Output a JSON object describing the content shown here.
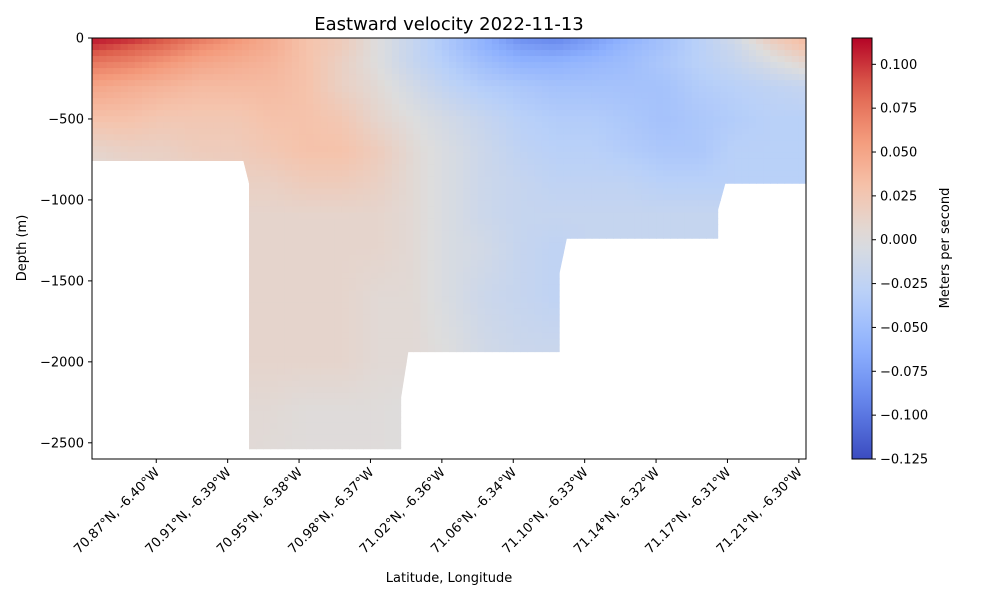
{
  "chart_data": {
    "type": "heatmap",
    "title": "Eastward velocity 2022-11-13",
    "xlabel": "Latitude, Longitude",
    "ylabel": "Depth (m)",
    "colorbar_label": "Meters per second",
    "colormap": "coolwarm",
    "ylim": [
      -2600,
      0
    ],
    "y_ticks": [
      0,
      -500,
      -1000,
      -1500,
      -2000,
      -2500
    ],
    "y_tick_labels": [
      "0",
      "−500",
      "−1000",
      "−1500",
      "−2000",
      "−2500"
    ],
    "x_range": [
      0,
      10
    ],
    "x_ticks": [
      0.9,
      1.9,
      2.9,
      3.9,
      4.9,
      5.9,
      6.9,
      7.9,
      8.9,
      9.9
    ],
    "x_tick_labels": [
      "70.87°N, -6.40°W",
      "70.91°N, -6.39°W",
      "70.95°N, -6.38°W",
      "70.98°N, -6.37°W",
      "71.02°N, -6.36°W",
      "71.06°N, -6.34°W",
      "71.10°N, -6.33°W",
      "71.14°N, -6.32°W",
      "71.17°N, -6.31°W",
      "71.21°N, -6.30°W"
    ],
    "colorbar_range": [
      -0.125,
      0.115
    ],
    "colorbar_ticks": [
      0.1,
      0.075,
      0.05,
      0.025,
      0.0,
      -0.025,
      -0.05,
      -0.075,
      -0.1,
      -0.125
    ],
    "colorbar_tick_labels": [
      "0.100",
      "0.075",
      "0.050",
      "0.025",
      "0.000",
      "−0.025",
      "−0.050",
      "−0.075",
      "−0.100",
      "−0.125"
    ],
    "bottom_depth_profile": [
      {
        "x": 0.0,
        "depth": -760
      },
      {
        "x": 2.12,
        "depth": -760
      },
      {
        "x": 2.2,
        "depth": -900
      },
      {
        "x": 2.2,
        "depth": -2540
      },
      {
        "x": 4.33,
        "depth": -2540
      },
      {
        "x": 4.33,
        "depth": -2220
      },
      {
        "x": 4.43,
        "depth": -1940
      },
      {
        "x": 6.55,
        "depth": -1940
      },
      {
        "x": 6.55,
        "depth": -1450
      },
      {
        "x": 6.65,
        "depth": -1240
      },
      {
        "x": 8.77,
        "depth": -1240
      },
      {
        "x": 8.77,
        "depth": -1060
      },
      {
        "x": 8.87,
        "depth": -900
      },
      {
        "x": 10.0,
        "depth": -900
      }
    ],
    "velocity_samples": {
      "x": [
        0.0,
        0.5,
        1.0,
        1.5,
        2.0,
        2.5,
        3.0,
        3.5,
        4.0,
        4.5,
        5.0,
        5.5,
        6.0,
        6.5,
        7.0,
        7.5,
        8.0,
        8.5,
        9.0,
        9.5,
        10.0
      ],
      "depth": [
        0,
        -50,
        -150,
        -300,
        -500,
        -700,
        -900,
        -1100,
        -1300,
        -1600,
        -2000,
        -2300,
        -2600
      ],
      "values": [
        [
          0.11,
          0.105,
          0.09,
          0.075,
          0.06,
          0.045,
          0.03,
          0.02,
          0.0,
          -0.02,
          -0.04,
          -0.06,
          -0.085,
          -0.09,
          -0.075,
          -0.06,
          -0.045,
          -0.03,
          -0.01,
          0.02,
          0.035
        ],
        [
          0.1,
          0.09,
          0.08,
          0.065,
          0.055,
          0.045,
          0.03,
          0.02,
          0.0,
          -0.02,
          -0.04,
          -0.06,
          -0.075,
          -0.08,
          -0.07,
          -0.055,
          -0.045,
          -0.03,
          -0.015,
          0.01,
          0.03
        ],
        [
          0.075,
          0.07,
          0.06,
          0.05,
          0.045,
          0.04,
          0.03,
          0.015,
          0.0,
          -0.02,
          -0.035,
          -0.05,
          -0.06,
          -0.06,
          -0.055,
          -0.05,
          -0.04,
          -0.03,
          -0.02,
          -0.005,
          0.01
        ],
        [
          0.05,
          0.045,
          0.04,
          0.035,
          0.035,
          0.035,
          0.03,
          0.015,
          0.005,
          -0.01,
          -0.025,
          -0.035,
          -0.04,
          -0.045,
          -0.045,
          -0.045,
          -0.045,
          -0.035,
          -0.03,
          -0.025,
          -0.02
        ],
        [
          0.03,
          0.03,
          0.025,
          0.025,
          0.025,
          0.03,
          0.03,
          0.025,
          0.01,
          0.0,
          -0.01,
          -0.02,
          -0.03,
          -0.035,
          -0.035,
          -0.04,
          -0.045,
          -0.04,
          -0.035,
          -0.03,
          -0.03
        ],
        [
          0.01,
          0.015,
          0.015,
          0.02,
          0.02,
          0.025,
          0.03,
          0.03,
          0.02,
          0.005,
          -0.005,
          -0.015,
          -0.025,
          -0.03,
          -0.03,
          -0.035,
          -0.04,
          -0.04,
          -0.03,
          -0.03,
          -0.03
        ],
        [
          0.0,
          0.005,
          0.01,
          0.01,
          0.015,
          0.015,
          0.02,
          0.02,
          0.015,
          0.005,
          -0.005,
          -0.015,
          -0.02,
          -0.025,
          -0.025,
          -0.025,
          -0.03,
          -0.03,
          -0.03,
          -0.03,
          -0.03
        ],
        [
          0.0,
          0.005,
          0.005,
          0.01,
          0.01,
          0.01,
          0.01,
          0.01,
          0.01,
          0.005,
          -0.005,
          -0.015,
          -0.02,
          -0.02,
          -0.02,
          -0.02,
          -0.02,
          -0.02,
          -0.02,
          -0.02,
          -0.02
        ],
        [
          0.0,
          0.005,
          0.005,
          0.005,
          0.01,
          0.01,
          0.01,
          0.01,
          0.01,
          0.005,
          -0.005,
          -0.01,
          -0.02,
          -0.025,
          -0.02,
          -0.02,
          -0.02,
          -0.02,
          -0.02,
          -0.02,
          -0.02
        ],
        [
          0.0,
          0.005,
          0.005,
          0.005,
          0.01,
          0.01,
          0.01,
          0.01,
          0.005,
          0.005,
          -0.005,
          -0.015,
          -0.02,
          -0.025,
          -0.02,
          -0.02,
          -0.02,
          -0.02,
          -0.02,
          -0.02,
          -0.02
        ],
        [
          0.0,
          0.005,
          0.005,
          0.005,
          0.01,
          0.01,
          0.01,
          0.01,
          0.005,
          0.005,
          0.0,
          -0.01,
          -0.015,
          -0.015,
          -0.015,
          -0.015,
          -0.015,
          -0.015,
          -0.015,
          -0.015,
          -0.015
        ],
        [
          0.0,
          0.005,
          0.005,
          0.005,
          0.005,
          0.005,
          0.002,
          0.002,
          0.002,
          0.0,
          0.0,
          -0.005,
          -0.01,
          -0.01,
          -0.01,
          -0.01,
          -0.01,
          -0.01,
          -0.01,
          -0.01,
          -0.01
        ],
        [
          0.0,
          0.005,
          0.005,
          0.005,
          0.005,
          0.003,
          0.002,
          0.002,
          0.002,
          0.0,
          0.0,
          -0.005,
          -0.01,
          -0.01,
          -0.01,
          -0.01,
          -0.01,
          -0.01,
          -0.01,
          -0.01,
          -0.01
        ]
      ]
    }
  }
}
